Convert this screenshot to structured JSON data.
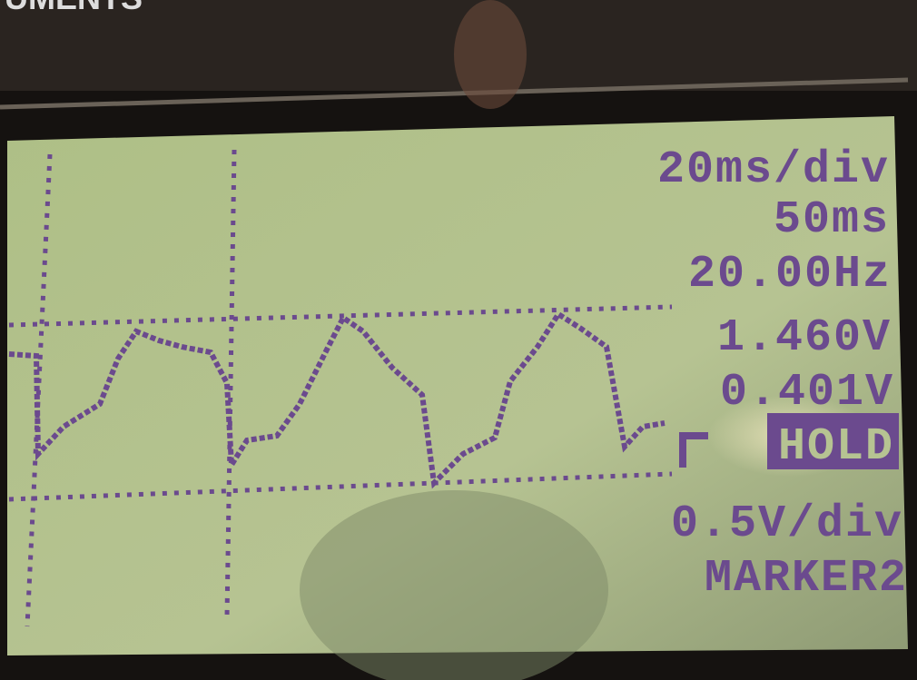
{
  "header": {
    "brand": "UMENTS"
  },
  "readouts": {
    "timebase": "20ms/div",
    "time": "50ms",
    "frequency": "20.00Hz",
    "marker1": "1.460V",
    "marker2": "0.401V",
    "mode": "HOLD",
    "vertical_scale": "0.5V/div",
    "marker_select": "MARKER2"
  }
}
